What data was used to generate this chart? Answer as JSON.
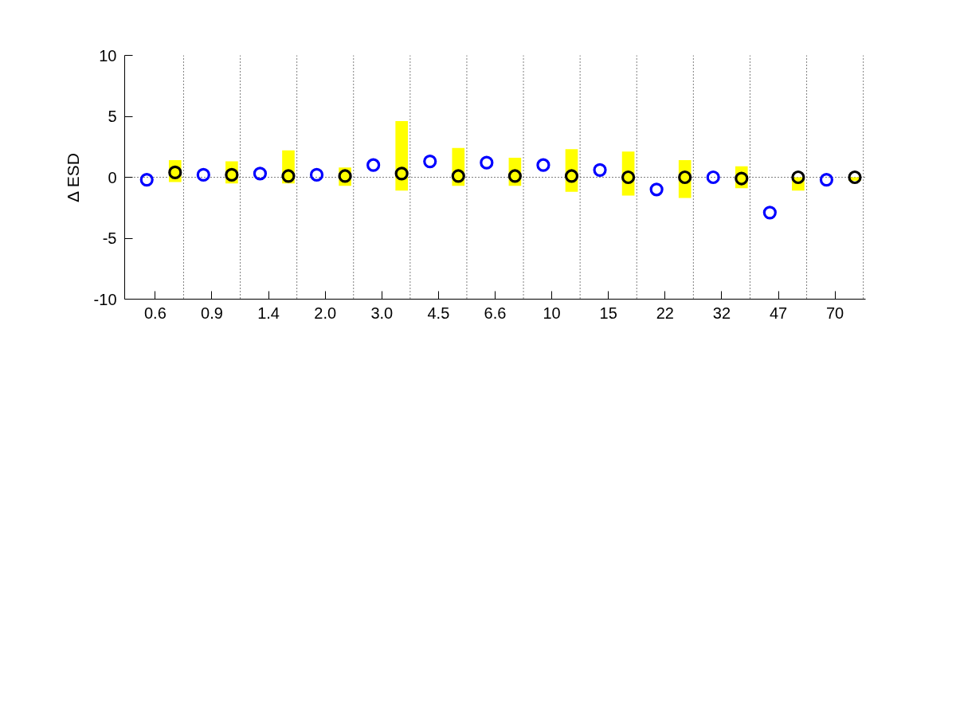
{
  "chart_data": {
    "type": "scatter",
    "ylabel": "Δ ESD",
    "marker": "circle",
    "categories": [
      "0.6",
      "0.9",
      "1.4",
      "2.0",
      "3.0",
      "4.5",
      "6.6",
      "10",
      "15",
      "22",
      "32",
      "47",
      "70"
    ],
    "ylim": [
      -10,
      10
    ],
    "yticks": [
      -10,
      -5,
      0,
      5,
      10
    ],
    "ref_lines": [
      {
        "axis": "y",
        "value": 0,
        "color": "#000000",
        "line_style": "dotted"
      }
    ],
    "series": [
      {
        "type": "bar",
        "color": "#ffff00",
        "base": [
          -0.4,
          -0.5,
          -0.5,
          -0.7,
          -1.1,
          -0.7,
          -0.7,
          -1.2,
          -1.5,
          -1.7,
          -0.9,
          -1.1,
          -0.3
        ],
        "values": [
          1.8,
          1.8,
          2.7,
          1.5,
          5.7,
          3.1,
          2.3,
          3.5,
          3.6,
          3.1,
          1.8,
          1.1,
          0.3
        ]
      },
      {
        "color": "#000000",
        "values": [
          0.4,
          0.2,
          0.1,
          0.1,
          0.3,
          0.1,
          0.1,
          0.1,
          0.0,
          0.0,
          -0.1,
          0.0,
          0.0
        ]
      },
      {
        "color": "#0000ff",
        "values": [
          -0.2,
          0.2,
          0.3,
          0.2,
          1.0,
          1.3,
          1.2,
          1.0,
          0.6,
          -1.0,
          0.0,
          -2.9,
          -0.2
        ]
      }
    ]
  }
}
